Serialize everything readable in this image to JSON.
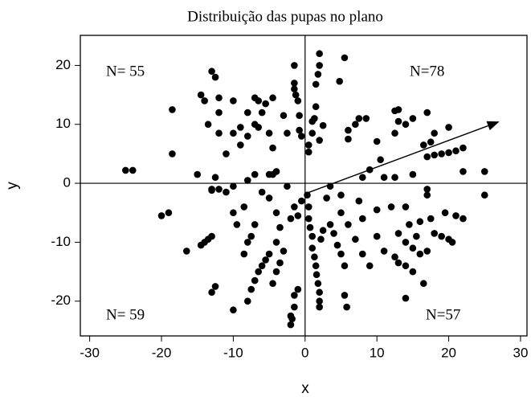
{
  "chart_data": {
    "type": "scatter",
    "title": "Distribuição das pupas no plano",
    "x_label": "x",
    "y_label": "y",
    "annotations": [
      "N= 55",
      "N=78",
      "N= 59",
      "N=57"
    ],
    "color": "#000000",
    "xlim": [
      -31.3,
      30.9
    ],
    "ylim": [
      -25.9,
      25.1
    ],
    "xticks": [
      -30,
      -20,
      -10,
      0,
      10,
      20,
      30
    ],
    "yticks": [
      -20,
      -10,
      0,
      10,
      20
    ],
    "arrow": {
      "x": [
        0.4,
        26.9
      ],
      "y": [
        -1.6,
        10.4
      ]
    },
    "x": [
      2,
      5.5,
      2,
      1.8,
      4.8,
      1.5,
      1.5,
      1.3,
      1,
      2.5,
      1,
      0.5,
      0.5,
      2,
      6,
      7,
      7.5,
      8.5,
      6,
      10,
      12.5,
      13,
      15,
      17,
      18,
      12.5,
      13,
      14,
      17.5,
      20,
      16.5,
      10.5,
      9,
      8,
      11,
      12.5,
      15,
      17,
      18,
      19,
      20,
      21,
      22,
      22,
      25,
      17,
      3.5,
      -1.5,
      -1.5,
      -1.5,
      -1.3,
      -1,
      -0.8,
      -0.8,
      -0.5,
      -3,
      -2.5,
      -4.5,
      -5.5,
      -6,
      -7,
      -6.5,
      -8,
      -7,
      -6.5,
      -8,
      -10,
      -12,
      -13,
      -12.5,
      -14.5,
      -14,
      -9,
      -9,
      -10,
      -11,
      -12,
      -13.5,
      -12,
      -18.5,
      -18.5,
      -15,
      -12.5,
      -13,
      -12,
      -25,
      -24,
      -4.5,
      -4,
      -5,
      -4.5,
      -5,
      -2.5,
      -6,
      -7,
      -8,
      -10,
      -20,
      -19,
      -16.5,
      -14.5,
      -14,
      -13.5,
      -13,
      -13,
      -12.5,
      -10,
      -10,
      -9.5,
      -8.5,
      -8,
      -7.5,
      -7,
      -8,
      -7.5,
      -7,
      -6.5,
      -6,
      -5.5,
      -5,
      -4.5,
      -4,
      -3.5,
      -3,
      -4,
      -3.5,
      -2,
      -1.5,
      -0.5,
      -1,
      -4,
      -2,
      -2,
      -1.8,
      -1.5,
      -1.5,
      -1,
      -5,
      -8.5,
      -11,
      -13,
      0.3,
      0.5,
      0.5,
      0.7,
      1,
      1,
      1.3,
      1.5,
      1.6,
      1.8,
      2,
      2,
      2,
      2.2,
      2.5,
      3.5,
      4,
      4.5,
      5,
      5.5,
      5.5,
      5.8,
      5,
      6,
      7,
      8,
      9,
      10,
      11,
      12.5,
      13,
      14,
      15,
      16.5,
      14,
      13,
      14,
      15,
      16,
      17,
      15.5,
      18,
      19,
      20,
      20.5,
      16,
      17.5,
      19.5,
      21,
      22,
      25,
      14,
      14.5,
      12,
      10,
      7.5,
      5,
      3,
      8,
      17
    ],
    "y": [
      22,
      21.3,
      20,
      18.5,
      17.3,
      16.8,
      13,
      11,
      10.5,
      9.8,
      8.5,
      6.5,
      5.3,
      7.3,
      9,
      10,
      11,
      11,
      7.5,
      7.1,
      12.3,
      12.5,
      11,
      12,
      8.5,
      8.5,
      10.5,
      10,
      7,
      9.5,
      6.5,
      4,
      2.3,
      1,
      1,
      1,
      1.5,
      4.5,
      4.8,
      5,
      5.2,
      5.5,
      6,
      2,
      2,
      -1,
      -0.5,
      20,
      17,
      16,
      15,
      14,
      11.5,
      9,
      8,
      11.5,
      8.5,
      14.5,
      13.5,
      12,
      14.5,
      14,
      12,
      10,
      9.5,
      8,
      14,
      14.5,
      19,
      18,
      15,
      14,
      9.5,
      6.5,
      8.5,
      5,
      8.5,
      10,
      12,
      12.5,
      5,
      1.5,
      1,
      -1,
      -1,
      2.2,
      2.2,
      1.5,
      2,
      1.5,
      6,
      8.5,
      -0.5,
      -1.5,
      1.5,
      0.5,
      -0.5,
      -5.5,
      -5,
      -11.5,
      -10.5,
      -10,
      -9.5,
      -9,
      -18.5,
      -17.5,
      -21.5,
      -5,
      -7,
      -12,
      -10,
      -9,
      -7,
      -20,
      -18,
      -16.5,
      -15,
      -14,
      -13,
      -12,
      -17,
      -15,
      -13.5,
      -11.5,
      -10,
      -7.5,
      -6,
      -4,
      -3,
      -5.5,
      -5,
      -22.5,
      -24,
      -23,
      -21,
      -19,
      -18,
      -2.5,
      -4,
      -1.5,
      -1.2,
      -2,
      -4,
      -6,
      -7.5,
      -9,
      -11,
      -12.5,
      -14,
      -15.5,
      -17,
      -18.5,
      -20,
      -21,
      -9.5,
      -8,
      -7,
      -8.5,
      -10.5,
      -12,
      -14,
      -19,
      -21,
      -5,
      -7,
      -9.5,
      -12,
      -14,
      -9,
      -11.5,
      -12.5,
      -13.5,
      -14,
      -15,
      -17,
      -19.5,
      -8.5,
      -10,
      -11,
      -12,
      -11.5,
      -9,
      -8.5,
      -9,
      -9.5,
      -10,
      -6.5,
      -6,
      -5,
      -5.5,
      -6,
      -2,
      -4,
      -7,
      -4,
      -4.5,
      -3,
      -2,
      -2.5,
      -6,
      -2
    ]
  }
}
